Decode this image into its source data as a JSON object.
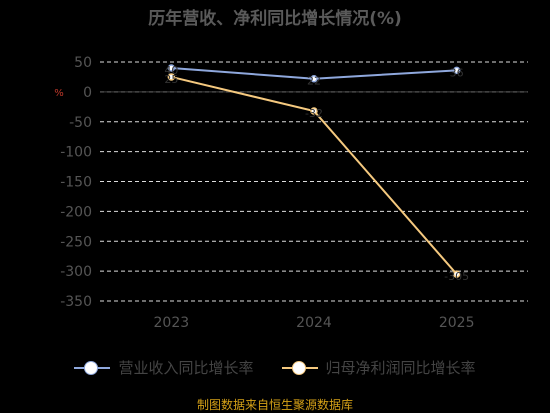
{
  "title": "历年营收、净利同比增长情况(%)",
  "source": "制图数据来自恒生聚源数据库",
  "colors": {
    "revenue": "#8fa8dd",
    "profit": "#f5c97f",
    "grid": "#dddddd",
    "axis_text": "#555555"
  },
  "chart_data": {
    "type": "line",
    "title": "历年营收、净利同比增长情况(%)",
    "xlabel": "",
    "ylabel": "%",
    "categories": [
      "2023",
      "2024",
      "2025"
    ],
    "ylim": [
      -350,
      50
    ],
    "yticks": [
      50,
      0,
      -50,
      -100,
      -150,
      -200,
      -250,
      -300,
      -350
    ],
    "grid": true,
    "legend_position": "bottom",
    "series": [
      {
        "name": "营业收入同比增长率",
        "values": [
          40,
          22,
          36
        ],
        "labels": [
          "40",
          "22",
          "36"
        ]
      },
      {
        "name": "归母净利润同比增长率",
        "values": [
          25,
          -32,
          -305
        ],
        "labels": [
          "25",
          "-32",
          "-305"
        ]
      }
    ]
  }
}
